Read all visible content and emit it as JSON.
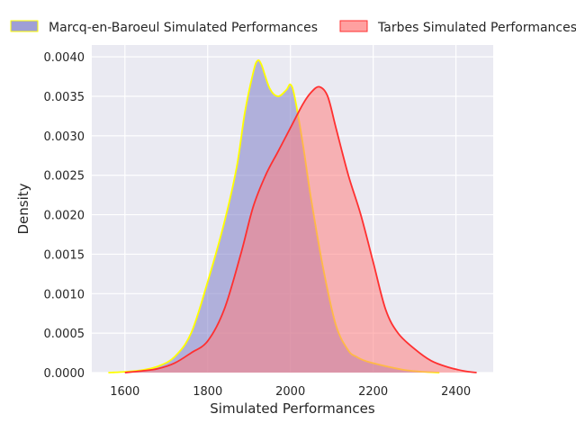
{
  "chart_data": {
    "type": "area",
    "xlabel": "Simulated Performances",
    "ylabel": "Density",
    "xlim": [
      1520,
      2490
    ],
    "ylim": [
      0,
      0.00415
    ],
    "x_ticks": [
      1600,
      1800,
      2000,
      2200,
      2400
    ],
    "y_ticks": [
      0,
      0.0005,
      0.001,
      0.0015,
      0.002,
      0.0025,
      0.003,
      0.0035,
      0.004
    ],
    "y_tick_labels": [
      "0.0000",
      "0.0005",
      "0.0010",
      "0.0015",
      "0.0020",
      "0.0025",
      "0.0030",
      "0.0035",
      "0.0040"
    ],
    "grid": true,
    "legend_position": "top, outside plot",
    "series": [
      {
        "name": "Marcq-en-Baroeul Simulated Performances",
        "fill_color": "#7f7fc8",
        "line_color": "#ffff00",
        "x": [
          1560,
          1600,
          1640,
          1680,
          1720,
          1760,
          1800,
          1840,
          1870,
          1890,
          1910,
          1920,
          1930,
          1950,
          1970,
          1990,
          2000,
          2010,
          2030,
          2050,
          2080,
          2110,
          2140,
          2160,
          2180,
          2200,
          2240,
          2280,
          2320,
          2360
        ],
        "y": [
          0,
          1e-05,
          3e-05,
          8e-05,
          0.0002,
          0.0005,
          0.00115,
          0.0019,
          0.0026,
          0.0033,
          0.0038,
          0.00395,
          0.0039,
          0.0036,
          0.0035,
          0.00358,
          0.00365,
          0.0035,
          0.0029,
          0.0022,
          0.0013,
          0.0006,
          0.00028,
          0.0002,
          0.00015,
          0.00012,
          7e-05,
          3e-05,
          1e-05,
          0
        ]
      },
      {
        "name": "Tarbes Simulated Performances",
        "fill_color": "#ff8080",
        "line_color": "#ff3030",
        "x": [
          1600,
          1640,
          1680,
          1720,
          1760,
          1800,
          1840,
          1880,
          1910,
          1940,
          1970,
          2000,
          2030,
          2050,
          2070,
          2090,
          2110,
          2140,
          2170,
          2200,
          2230,
          2260,
          2300,
          2340,
          2380,
          2420,
          2450
        ],
        "y": [
          0,
          2e-05,
          5e-05,
          0.00012,
          0.00025,
          0.0004,
          0.0008,
          0.0015,
          0.0021,
          0.0025,
          0.0028,
          0.0031,
          0.0034,
          0.00355,
          0.00362,
          0.0035,
          0.0031,
          0.0025,
          0.002,
          0.0014,
          0.0008,
          0.0005,
          0.0003,
          0.00015,
          7e-05,
          2e-05,
          0
        ]
      }
    ]
  }
}
